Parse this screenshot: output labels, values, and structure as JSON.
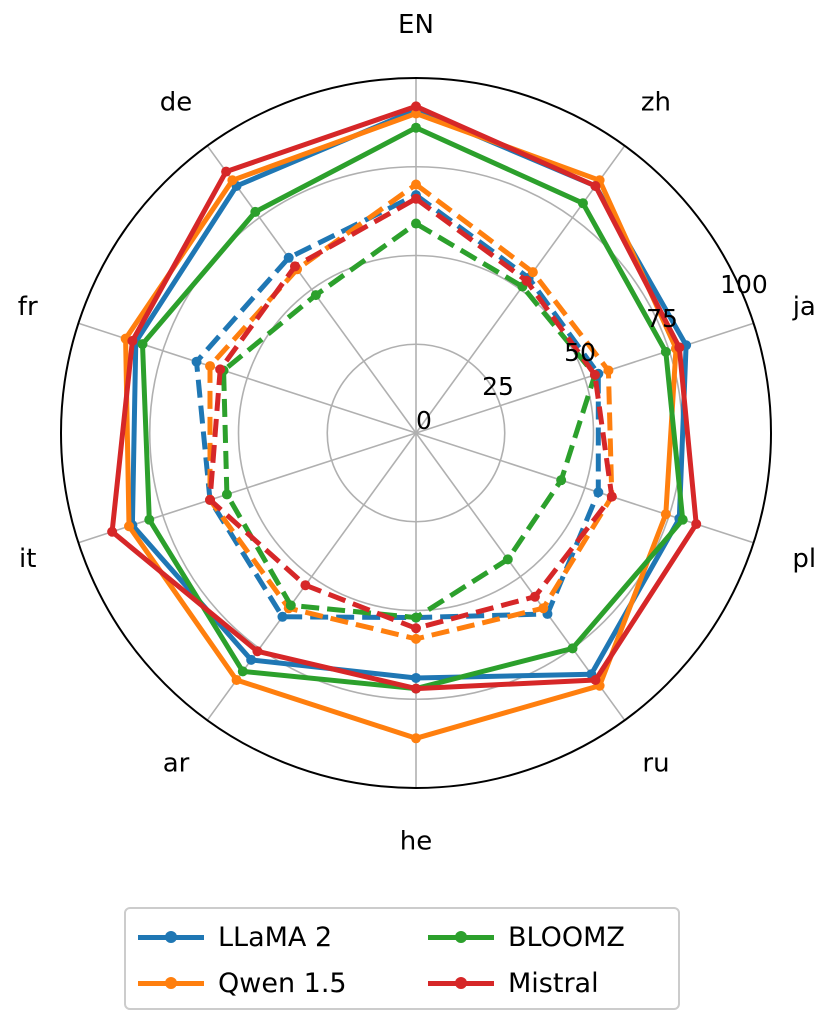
{
  "chart_data": {
    "type": "radar",
    "title": "",
    "categories": [
      "EN",
      "zh",
      "ja",
      "pl",
      "ru",
      "he",
      "ar",
      "it",
      "fr",
      "de"
    ],
    "rlim": [
      0,
      100
    ],
    "rticks": [
      0,
      25,
      50,
      75,
      100
    ],
    "rtick_labels": [
      "0",
      "25",
      "50",
      "75",
      "100"
    ],
    "grid": true,
    "legend_placement": "bottom-center",
    "series": [
      {
        "name": "LLaMA 2",
        "color": "#1f77b4",
        "style": "solid",
        "values": [
          91,
          86,
          80,
          78,
          84,
          69,
          79,
          84,
          83,
          86
        ]
      },
      {
        "name": "Qwen 1.5",
        "color": "#ff7f0e",
        "style": "solid",
        "values": [
          90,
          88,
          77,
          74,
          88,
          86,
          86,
          85,
          86,
          88
        ]
      },
      {
        "name": "LLaMA 2",
        "color": "#1f77b4",
        "style": "dashed",
        "values": [
          67,
          54,
          54,
          54,
          63,
          52,
          64,
          61,
          65,
          61
        ]
      },
      {
        "name": "BLOOMZ",
        "color": "#2ca02c",
        "style": "solid",
        "values": [
          86,
          80,
          74,
          79,
          75,
          72,
          83,
          79,
          81,
          77
        ]
      },
      {
        "name": "Qwen 1.5",
        "color": "#ff7f0e",
        "style": "dashed",
        "values": [
          70,
          56,
          57,
          58,
          61,
          58,
          61,
          61,
          61,
          57
        ]
      },
      {
        "name": "BLOOMZ",
        "color": "#2ca02c",
        "style": "dashed",
        "values": [
          59,
          51,
          53,
          43,
          44,
          52,
          60,
          56,
          57,
          48
        ]
      },
      {
        "name": "Mistral",
        "color": "#d62728",
        "style": "solid",
        "values": [
          92,
          86,
          78,
          83,
          86,
          72,
          76,
          90,
          84,
          91
        ]
      },
      {
        "name": "Mistral",
        "color": "#d62728",
        "style": "dashed",
        "values": [
          66,
          53,
          53,
          58,
          57,
          55,
          53,
          61,
          58,
          58
        ]
      }
    ]
  },
  "legend": [
    {
      "label": "LLaMA 2",
      "color": "#1f77b4"
    },
    {
      "label": "BLOOMZ",
      "color": "#2ca02c"
    },
    {
      "label": "Qwen 1.5",
      "color": "#ff7f0e"
    },
    {
      "label": "Mistral",
      "color": "#d62728"
    }
  ]
}
